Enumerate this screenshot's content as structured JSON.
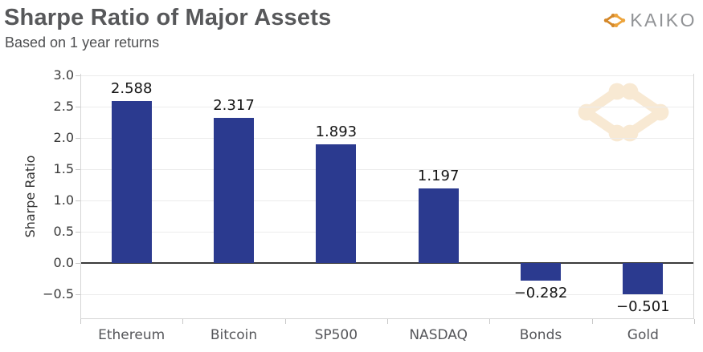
{
  "header": {
    "title": "Sharpe Ratio of Major Assets",
    "subtitle": "Based on 1 year returns",
    "brand": "KAIKO"
  },
  "colors": {
    "bar": "#2b3a8f",
    "zero_line": "#3a3a3a",
    "grid": "#ececec",
    "spine": "#d6d6d6",
    "title_text": "#57585a",
    "axis_text": "#55565a",
    "brand_text": "#919396",
    "logo_orange_dark": "#d4882a",
    "logo_orange_light": "#eda43c",
    "watermark_orange": "#f8e7cf"
  },
  "chart_data": {
    "type": "bar",
    "title": "Sharpe Ratio of Major Assets",
    "subtitle": "Based on 1 year returns",
    "categories": [
      "Ethereum",
      "Bitcoin",
      "SP500",
      "NASDAQ",
      "Bonds",
      "Gold"
    ],
    "values": [
      2.588,
      2.317,
      1.893,
      1.197,
      -0.282,
      -0.501
    ],
    "value_labels": [
      "2.588",
      "2.317",
      "1.893",
      "1.197",
      "−0.282",
      "−0.501"
    ],
    "xlabel": "",
    "ylabel": "Sharpe Ratio",
    "yticks": [
      3.0,
      2.5,
      2.0,
      1.5,
      1.0,
      0.5,
      0.0,
      -0.5
    ],
    "ytick_labels": [
      "3.0",
      "2.5",
      "2.0",
      "1.5",
      "1.0",
      "0.5",
      "0.0",
      "−0.5"
    ],
    "ylim": [
      -0.9,
      3.03
    ],
    "grid": true,
    "legend": false,
    "bar_color": "#2b3a8f"
  }
}
